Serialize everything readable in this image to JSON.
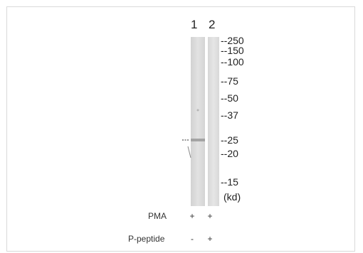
{
  "lanes": [
    "1",
    "2"
  ],
  "markers": [
    "--250",
    "--150",
    "--100",
    "--75",
    "--50",
    "--37",
    "--25",
    "--20",
    "--15",
    "(kd)"
  ],
  "conditions": [
    {
      "label": "PMA",
      "lane1": "+",
      "lane2": "+"
    },
    {
      "label": "P-peptide",
      "lane1": "-",
      "lane2": "+"
    }
  ],
  "colors": {
    "lane_fill": "#dcdcdc",
    "band": "#9a9a9a",
    "frame": "#d9d9d9"
  }
}
